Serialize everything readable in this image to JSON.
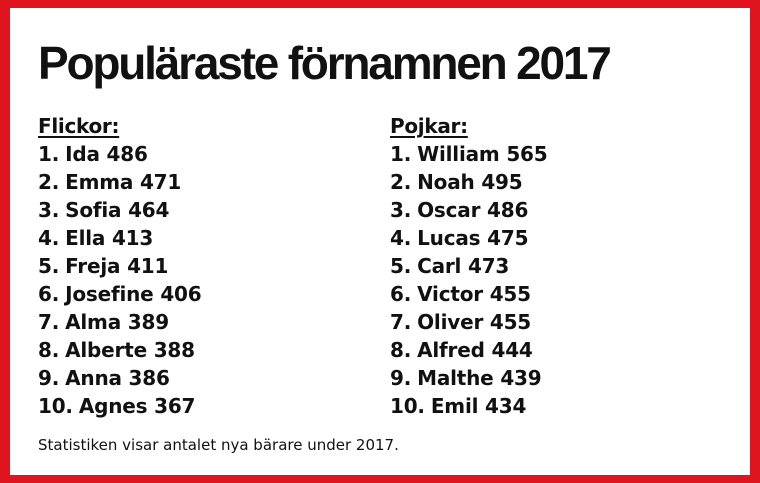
{
  "title": "Populäraste förnamnen 2017",
  "accent_color": "#e0141e",
  "girls": {
    "heading": "Flickor:",
    "items": [
      {
        "rank": "1.",
        "name": "Ida",
        "count": "486"
      },
      {
        "rank": "2.",
        "name": "Emma",
        "count": "471"
      },
      {
        "rank": "3.",
        "name": "Sofia",
        "count": "464"
      },
      {
        "rank": "4.",
        "name": "Ella",
        "count": "413"
      },
      {
        "rank": "5.",
        "name": "Freja",
        "count": "411"
      },
      {
        "rank": "6.",
        "name": "Josefine",
        "count": "406"
      },
      {
        "rank": "7.",
        "name": "Alma",
        "count": "389"
      },
      {
        "rank": "8.",
        "name": "Alberte",
        "count": "388"
      },
      {
        "rank": "9.",
        "name": "Anna",
        "count": "386"
      },
      {
        "rank": "10.",
        "name": "Agnes",
        "count": "367"
      }
    ]
  },
  "boys": {
    "heading": "Pojkar:",
    "items": [
      {
        "rank": "1.",
        "name": "William",
        "count": "565"
      },
      {
        "rank": "2.",
        "name": "Noah",
        "count": "495"
      },
      {
        "rank": "3.",
        "name": "Oscar",
        "count": "486"
      },
      {
        "rank": "4.",
        "name": "Lucas",
        "count": "475"
      },
      {
        "rank": "5.",
        "name": "Carl",
        "count": "473"
      },
      {
        "rank": "6.",
        "name": "Victor",
        "count": "455"
      },
      {
        "rank": "7.",
        "name": "Oliver",
        "count": "455"
      },
      {
        "rank": "8.",
        "name": "Alfred",
        "count": "444"
      },
      {
        "rank": "9.",
        "name": "Malthe",
        "count": "439"
      },
      {
        "rank": "10.",
        "name": "Emil",
        "count": "434"
      }
    ]
  },
  "footnote": "Statistiken visar antalet nya bärare under 2017."
}
